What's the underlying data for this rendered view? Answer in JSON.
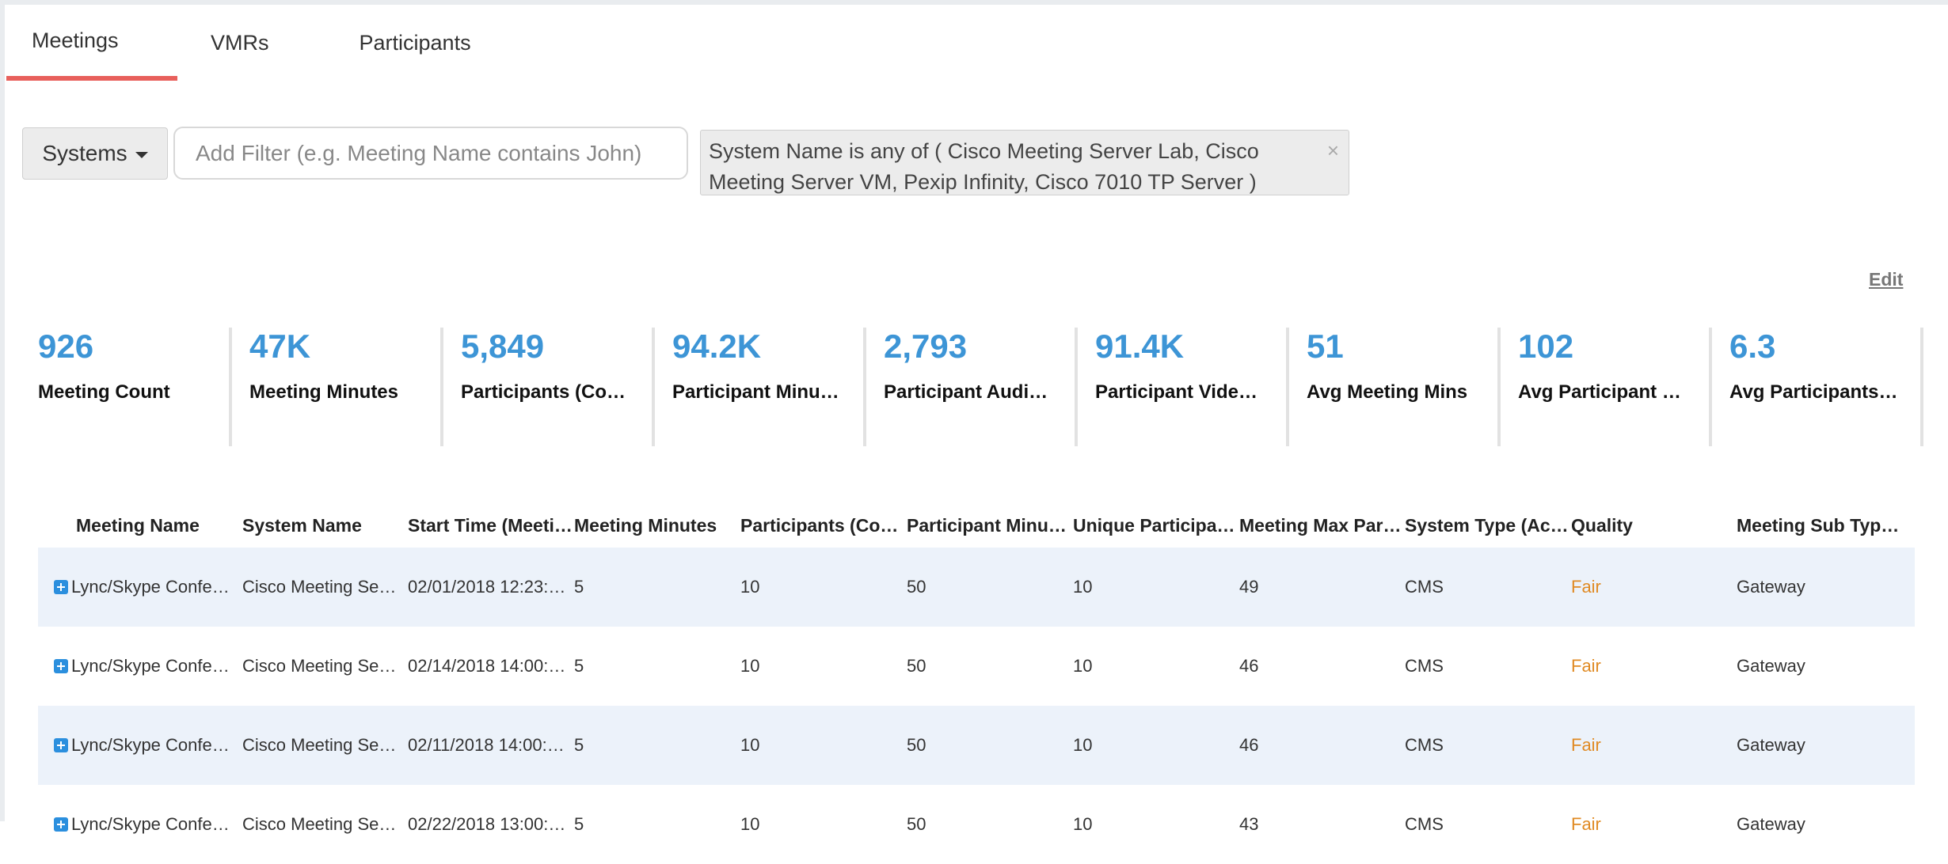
{
  "tabs": [
    {
      "label": "Meetings",
      "active": true
    },
    {
      "label": "VMRs",
      "active": false
    },
    {
      "label": "Participants",
      "active": false
    }
  ],
  "filters": {
    "systems_label": "Systems",
    "add_filter_placeholder": "Add Filter (e.g. Meeting Name contains John)",
    "active_filter": "System Name is any of ( Cisco Meeting Server Lab, Cisco Meeting Server VM, Pexip Infinity, Cisco 7010 TP Server )",
    "remove_icon": "×"
  },
  "edit_label": "Edit",
  "kpis": [
    {
      "value": "926",
      "label": "Meeting Count"
    },
    {
      "value": "47K",
      "label": "Meeting Minutes"
    },
    {
      "value": "5,849",
      "label": "Participants (Co…"
    },
    {
      "value": "94.2K",
      "label": "Participant Minu…"
    },
    {
      "value": "2,793",
      "label": "Participant Audi…"
    },
    {
      "value": "91.4K",
      "label": "Participant Vide…"
    },
    {
      "value": "51",
      "label": "Avg Meeting Mins"
    },
    {
      "value": "102",
      "label": "Avg Participant …"
    },
    {
      "value": "6.3",
      "label": "Avg Participants…"
    }
  ],
  "table": {
    "headers": [
      "Meeting Name",
      "System Name",
      "Start Time (Meeti…",
      "Meeting Minutes",
      "Participants (Co…",
      "Participant Minu…",
      "Unique Participa…",
      "Meeting Max Par…",
      "System Type (Ac…",
      "Quality",
      "Meeting Sub Typ…"
    ],
    "rows": [
      [
        "Lync/Skype Confe…",
        "Cisco Meeting Se…",
        "02/01/2018 12:23:…",
        "5",
        "10",
        "50",
        "10",
        "49",
        "CMS",
        "Fair",
        "Gateway"
      ],
      [
        "Lync/Skype Confe…",
        "Cisco Meeting Se…",
        "02/14/2018 14:00:…",
        "5",
        "10",
        "50",
        "10",
        "46",
        "CMS",
        "Fair",
        "Gateway"
      ],
      [
        "Lync/Skype Confe…",
        "Cisco Meeting Se…",
        "02/11/2018 14:00:…",
        "5",
        "10",
        "50",
        "10",
        "46",
        "CMS",
        "Fair",
        "Gateway"
      ],
      [
        "Lync/Skype Confe…",
        "Cisco Meeting Se…",
        "02/22/2018 13:00:…",
        "5",
        "10",
        "50",
        "10",
        "43",
        "CMS",
        "Fair",
        "Gateway"
      ]
    ]
  },
  "colors": {
    "accent": "#e8605c",
    "kpi": "#3d95d6",
    "quality_fair": "#e08a23",
    "row_shade": "#ecf2fa"
  }
}
